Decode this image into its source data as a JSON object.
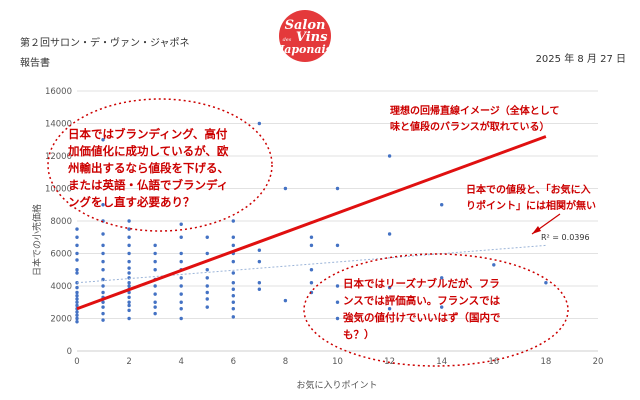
{
  "header": {
    "title": "第２回サロン・デ・ヴァン・ジャポネ",
    "subtitle": "報告書",
    "date": "2025 年 8 月 27 日",
    "logo_lines": [
      "Salon",
      "des",
      "Vins",
      "Japonais"
    ]
  },
  "colors": {
    "points": "#4472c4",
    "ideal_line": "#e01010",
    "trend_line": "#9bb4d8",
    "annotation": "#cc0000",
    "grid": "#d9d9d9"
  },
  "annotations": {
    "left_ellipse": [
      "日本ではブランディング、高付",
      "加価値化に成功しているが、欧",
      "州輸出するなら値段を下げる、",
      "または英語・仏語でブランディ",
      "ングをし直す必要あり？"
    ],
    "ideal_line_label": [
      "理想の回帰直線イメージ（全体として",
      "味と値段のバランスが取れている）"
    ],
    "no_correlation": [
      "日本での値段と、「お気に入",
      "りポイント」には相関が無い"
    ],
    "bottom_ellipse": [
      "日本ではリーズナブルだが、フラ",
      "ンスでは評価高い。フランスでは",
      "強気の値付けでいいはず（国内で",
      "も？）"
    ],
    "r_squared": "R² = 0.0396"
  },
  "chart_data": {
    "type": "scatter",
    "xlabel": "お気に入りポイント",
    "ylabel": "日本での小売価格",
    "xlim": [
      0,
      20
    ],
    "ylim": [
      0,
      16000
    ],
    "xticks": [
      "0",
      "2",
      "4",
      "6",
      "8",
      "10",
      "12",
      "14",
      "16",
      "18",
      "20"
    ],
    "yticks": [
      "0",
      "2000",
      "4000",
      "6000",
      "8000",
      "10000",
      "12000",
      "14000",
      "16000"
    ],
    "grid": true,
    "points": [
      [
        0,
        1800
      ],
      [
        0,
        2000
      ],
      [
        0,
        2200
      ],
      [
        0,
        2400
      ],
      [
        0,
        2600
      ],
      [
        0,
        2800
      ],
      [
        0,
        3000
      ],
      [
        0,
        3200
      ],
      [
        0,
        3400
      ],
      [
        0,
        3600
      ],
      [
        0,
        3900
      ],
      [
        0,
        4200
      ],
      [
        0,
        4800
      ],
      [
        0,
        5000
      ],
      [
        0,
        5600
      ],
      [
        0,
        6000
      ],
      [
        0,
        6500
      ],
      [
        0,
        7000
      ],
      [
        0,
        7500
      ],
      [
        1,
        1900
      ],
      [
        1,
        2300
      ],
      [
        1,
        2700
      ],
      [
        1,
        3000
      ],
      [
        1,
        3300
      ],
      [
        1,
        3600
      ],
      [
        1,
        4000
      ],
      [
        1,
        4400
      ],
      [
        1,
        5000
      ],
      [
        1,
        5500
      ],
      [
        1,
        6000
      ],
      [
        1,
        6500
      ],
      [
        1,
        7200
      ],
      [
        1,
        8000
      ],
      [
        1,
        9000
      ],
      [
        1,
        13000
      ],
      [
        2,
        2000
      ],
      [
        2,
        2500
      ],
      [
        2,
        2800
      ],
      [
        2,
        3000
      ],
      [
        2,
        3300
      ],
      [
        2,
        3600
      ],
      [
        2,
        3800
      ],
      [
        2,
        4000
      ],
      [
        2,
        4200
      ],
      [
        2,
        4500
      ],
      [
        2,
        4800
      ],
      [
        2,
        5100
      ],
      [
        2,
        5500
      ],
      [
        2,
        6000
      ],
      [
        2,
        6500
      ],
      [
        2,
        7000
      ],
      [
        2,
        7500
      ],
      [
        2,
        8000
      ],
      [
        3,
        2300
      ],
      [
        3,
        2700
      ],
      [
        3,
        3000
      ],
      [
        3,
        3500
      ],
      [
        3,
        4000
      ],
      [
        3,
        4400
      ],
      [
        3,
        5000
      ],
      [
        3,
        5500
      ],
      [
        3,
        6000
      ],
      [
        3,
        6500
      ],
      [
        4,
        2000
      ],
      [
        4,
        2600
      ],
      [
        4,
        3000
      ],
      [
        4,
        3500
      ],
      [
        4,
        4000
      ],
      [
        4,
        4500
      ],
      [
        4,
        5000
      ],
      [
        4,
        5500
      ],
      [
        4,
        6000
      ],
      [
        4,
        7000
      ],
      [
        4,
        7800
      ],
      [
        5,
        2700
      ],
      [
        5,
        3200
      ],
      [
        5,
        3600
      ],
      [
        5,
        4000
      ],
      [
        5,
        4500
      ],
      [
        5,
        5000
      ],
      [
        5,
        6000
      ],
      [
        5,
        7000
      ],
      [
        6,
        2100
      ],
      [
        6,
        2600
      ],
      [
        6,
        3000
      ],
      [
        6,
        3400
      ],
      [
        6,
        3800
      ],
      [
        6,
        4200
      ],
      [
        6,
        4800
      ],
      [
        6,
        5500
      ],
      [
        6,
        6000
      ],
      [
        6,
        6500
      ],
      [
        6,
        7000
      ],
      [
        6,
        8000
      ],
      [
        7,
        3800
      ],
      [
        7,
        4200
      ],
      [
        7,
        5500
      ],
      [
        7,
        6200
      ],
      [
        7,
        14000
      ],
      [
        8,
        3100
      ],
      [
        8,
        10000
      ],
      [
        9,
        3600
      ],
      [
        9,
        4200
      ],
      [
        9,
        5000
      ],
      [
        9,
        6500
      ],
      [
        9,
        7000
      ],
      [
        10,
        2000
      ],
      [
        10,
        3000
      ],
      [
        10,
        4000
      ],
      [
        10,
        6500
      ],
      [
        10,
        10000
      ],
      [
        12,
        2600
      ],
      [
        12,
        3900
      ],
      [
        12,
        7200
      ],
      [
        12,
        12000
      ],
      [
        14,
        2700
      ],
      [
        14,
        4500
      ],
      [
        14,
        9000
      ],
      [
        16,
        5300
      ],
      [
        18,
        4200
      ]
    ],
    "ideal_line": {
      "x": [
        0,
        18
      ],
      "y": [
        2600,
        13200
      ]
    },
    "trendline": {
      "x": [
        0,
        18
      ],
      "y": [
        4200,
        6500
      ],
      "r_squared": 0.0396
    }
  }
}
